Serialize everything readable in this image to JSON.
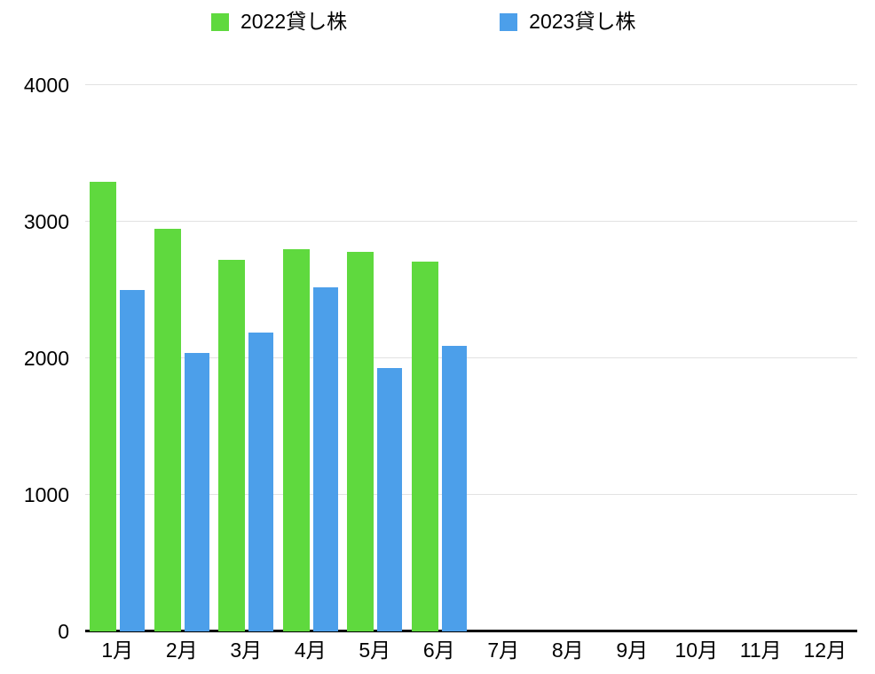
{
  "legend": {
    "items": [
      {
        "label": "2022貸し株",
        "color": "#5fd93e"
      },
      {
        "label": "2023貸し株",
        "color": "#4c9fea"
      }
    ]
  },
  "chart_data": {
    "type": "bar",
    "categories": [
      "1月",
      "2月",
      "3月",
      "4月",
      "5月",
      "6月",
      "7月",
      "8月",
      "9月",
      "10月",
      "11月",
      "12月"
    ],
    "series": [
      {
        "name": "2022貸し株",
        "color": "#5fd93e",
        "values": [
          3290,
          2950,
          2720,
          2800,
          2780,
          2710,
          null,
          null,
          null,
          null,
          null,
          null
        ]
      },
      {
        "name": "2023貸し株",
        "color": "#4c9fea",
        "values": [
          2500,
          2040,
          2190,
          2520,
          1930,
          2090,
          null,
          null,
          null,
          null,
          null,
          null
        ]
      }
    ],
    "title": "",
    "xlabel": "",
    "ylabel": "",
    "ylim": [
      0,
      4000
    ],
    "yticks": [
      4000,
      3000,
      2000,
      1000,
      0
    ],
    "grid": true,
    "legend_position": "top",
    "background": "#ffffff",
    "gridline_color": "#e2e2e2",
    "axis_color": "#000000"
  }
}
